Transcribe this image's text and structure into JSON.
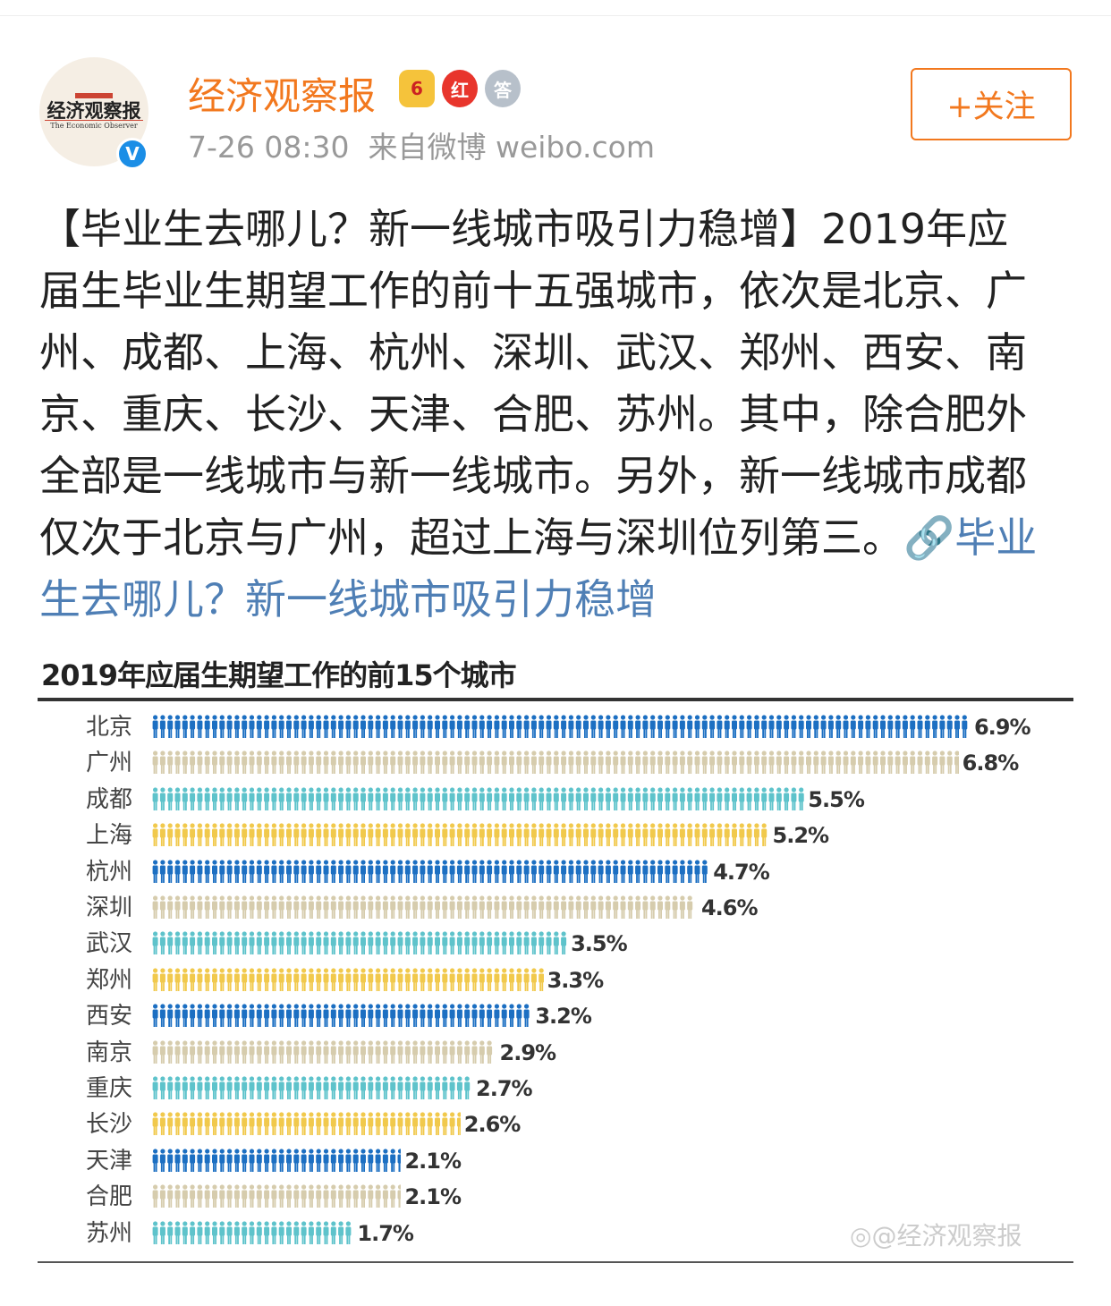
{
  "post": {
    "author": "经济观察报",
    "avatar_logo": "经济观察报",
    "avatar_subtitle": "The Economic Observer",
    "verified_icon": "V",
    "badges": [
      {
        "icon": "crown-level-badge",
        "label": "6"
      },
      {
        "icon": "red-badge",
        "label": "红"
      },
      {
        "icon": "answer-medal-badge",
        "label": "答"
      }
    ],
    "timestamp": "7-26 08:30",
    "source": "来自微博 weibo.com",
    "follow_label": "+关注",
    "text_lines": [
      "【毕业生去哪儿？新一线城市吸引力稳增】2019年应",
      "届生毕业生期望工作的前十五强城市，依次是北京、广",
      "州、成都、上海、杭州、深圳、武汉、郑州、西安、南",
      "京、重庆、长沙、天津、合肥、苏州。其中，除合肥外",
      "全部是一线城市与新一线城市。另外，新一线城市成都",
      "仅次于北京与广州，超过上海与深圳位列第三。"
    ],
    "link_part1": "🔗毕业",
    "link_part2": "生去哪儿？新一线城市吸引力稳增",
    "watermark": "@经济观察报"
  },
  "chart_data": {
    "type": "bar",
    "title": "2019年应届生期望工作的前15个城市",
    "categories": [
      "北京",
      "广州",
      "成都",
      "上海",
      "杭州",
      "深圳",
      "武汉",
      "郑州",
      "西安",
      "南京",
      "重庆",
      "长沙",
      "天津",
      "合肥",
      "苏州"
    ],
    "values": [
      6.9,
      6.8,
      5.5,
      5.2,
      4.7,
      4.6,
      3.5,
      3.3,
      3.2,
      2.9,
      2.7,
      2.6,
      2.1,
      2.1,
      1.7
    ],
    "labels": [
      "6.9%",
      "6.8%",
      "5.5%",
      "5.2%",
      "4.7%",
      "4.6%",
      "3.5%",
      "3.3%",
      "3.2%",
      "2.9%",
      "2.7%",
      "2.6%",
      "2.1%",
      "2.1%",
      "1.7%"
    ],
    "unit": "%",
    "colors": [
      "#1c6fc2",
      "#d6ccad",
      "#5ec3cb",
      "#f1c94c"
    ]
  }
}
